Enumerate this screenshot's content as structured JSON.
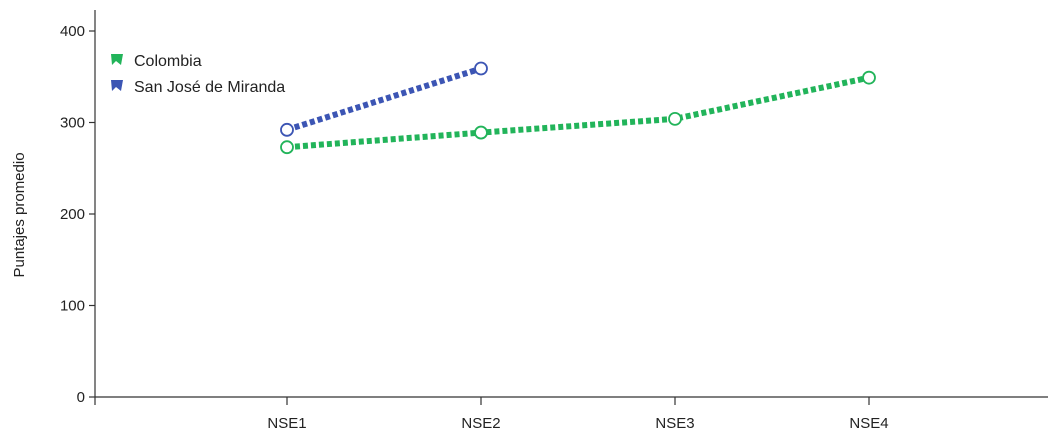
{
  "chart_data": {
    "type": "line",
    "title": "",
    "xlabel": "",
    "ylabel": "Puntajes promedio",
    "categories": [
      "NSE1",
      "NSE2",
      "NSE3",
      "NSE4"
    ],
    "ylim": [
      0,
      400
    ],
    "yticks": [
      0,
      100,
      200,
      300,
      400
    ],
    "grid": false,
    "legend_position": "top-left",
    "series": [
      {
        "name": "Colombia",
        "color": "#22b45a",
        "values": [
          273,
          289,
          304,
          349
        ]
      },
      {
        "name": "San José de Miranda",
        "color": "#3c55b4",
        "values": [
          292,
          359,
          null,
          null
        ]
      }
    ]
  }
}
